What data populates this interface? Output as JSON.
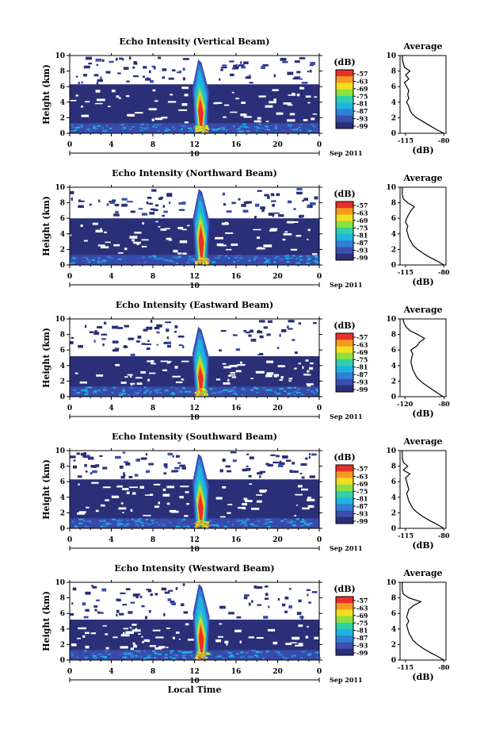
{
  "chart_data": [
    {
      "type": "heatmap",
      "title": "Echo Intensity (Vertical Beam)",
      "ylabel": "Height (km)",
      "xlabel": "",
      "x_ticks": [
        "0",
        "4",
        "8",
        "12",
        "16",
        "20",
        "0"
      ],
      "x_range": [
        0,
        24
      ],
      "y_ticks": [
        "0",
        "2",
        "4",
        "6",
        "8",
        "10"
      ],
      "y_range": [
        0,
        10
      ],
      "date_label": "10",
      "date_suffix": "Sep 2011",
      "colorbar": {
        "unit": "(dB)",
        "ticks": [
          "-57",
          "-63",
          "-69",
          "-75",
          "-81",
          "-87",
          "-93",
          "-99"
        ]
      },
      "echo": {
        "background_top_km": 6.3,
        "storm_start_h": 12.0,
        "storm_end_h": 13.2,
        "storm_top_km": 9.5,
        "strong_core_top_km": 5.0
      },
      "average_profile": {
        "title": "Average",
        "xlabel": "(dB)",
        "x_ticks": [
          "-115",
          "-80"
        ],
        "x_range": [
          -120,
          -78
        ],
        "heights": [
          0,
          0.5,
          1,
          1.5,
          2,
          2.5,
          3,
          3.5,
          4,
          4.5,
          5,
          5.5,
          6,
          6.5,
          7,
          7.5,
          8,
          8.5,
          9,
          9.5,
          10
        ],
        "values": [
          -80,
          -87,
          -93,
          -99,
          -105,
          -109,
          -111,
          -112,
          -114,
          -112,
          -113,
          -112,
          -114,
          -116,
          -112,
          -115,
          -111,
          -116,
          -117,
          -118,
          -118
        ]
      }
    },
    {
      "type": "heatmap",
      "title": "Echo Intensity (Northward Beam)",
      "ylabel": "Height (km)",
      "xlabel": "",
      "x_ticks": [
        "0",
        "4",
        "8",
        "12",
        "16",
        "20",
        "0"
      ],
      "x_range": [
        0,
        24
      ],
      "y_ticks": [
        "0",
        "2",
        "4",
        "6",
        "8",
        "10"
      ],
      "y_range": [
        0,
        10
      ],
      "date_label": "10",
      "date_suffix": "Sep 2011",
      "colorbar": {
        "unit": "(dB)",
        "ticks": [
          "-57",
          "-63",
          "-69",
          "-75",
          "-81",
          "-87",
          "-93",
          "-99"
        ]
      },
      "echo": {
        "background_top_km": 6.0,
        "storm_start_h": 12.0,
        "storm_end_h": 13.3,
        "storm_top_km": 9.8,
        "strong_core_top_km": 5.5
      },
      "average_profile": {
        "title": "Average",
        "xlabel": "(dB)",
        "x_ticks": [
          "-115",
          "-80"
        ],
        "x_range": [
          -120,
          -78
        ],
        "heights": [
          0,
          0.5,
          1,
          1.5,
          2,
          2.5,
          3,
          3.5,
          4,
          4.5,
          5,
          5.5,
          6,
          6.5,
          7,
          7.5,
          8,
          8.5,
          9,
          9.5,
          10
        ],
        "values": [
          -80,
          -86,
          -93,
          -99,
          -104,
          -108,
          -110,
          -112,
          -113,
          -114,
          -113,
          -115,
          -114,
          -112,
          -110,
          -107,
          -113,
          -117,
          -118,
          -118,
          -118
        ]
      }
    },
    {
      "type": "heatmap",
      "title": "Echo Intensity (Eastward Beam)",
      "ylabel": "Height (km)",
      "xlabel": "",
      "x_ticks": [
        "0",
        "4",
        "8",
        "12",
        "16",
        "20",
        "0"
      ],
      "x_range": [
        0,
        24
      ],
      "y_ticks": [
        "0",
        "2",
        "4",
        "6",
        "8",
        "10"
      ],
      "y_range": [
        0,
        10
      ],
      "date_label": "10",
      "date_suffix": "Sep 2011",
      "colorbar": {
        "unit": "(dB)",
        "ticks": [
          "-57",
          "-63",
          "-69",
          "-75",
          "-81",
          "-87",
          "-93",
          "-99"
        ]
      },
      "echo": {
        "background_top_km": 5.2,
        "storm_start_h": 12.0,
        "storm_end_h": 13.2,
        "storm_top_km": 9.0,
        "strong_core_top_km": 4.5
      },
      "average_profile": {
        "title": "Average",
        "xlabel": "(dB)",
        "x_ticks": [
          "-120",
          "-80"
        ],
        "x_range": [
          -125,
          -78
        ],
        "heights": [
          0,
          0.5,
          1,
          1.5,
          2,
          2.5,
          3,
          3.5,
          4,
          4.5,
          5,
          5.5,
          6,
          6.5,
          7,
          7.5,
          8,
          8.5,
          9,
          9.5,
          10
        ],
        "values": [
          -81,
          -87,
          -93,
          -99,
          -104,
          -108,
          -110,
          -112,
          -113,
          -114,
          -113,
          -112,
          -114,
          -108,
          -105,
          -100,
          -107,
          -115,
          -119,
          -121,
          -122
        ]
      }
    },
    {
      "type": "heatmap",
      "title": "Echo Intensity (Southward Beam)",
      "ylabel": "Height (km)",
      "xlabel": "",
      "x_ticks": [
        "0",
        "4",
        "8",
        "12",
        "16",
        "20",
        "0"
      ],
      "x_range": [
        0,
        24
      ],
      "y_ticks": [
        "0",
        "2",
        "4",
        "6",
        "8",
        "10"
      ],
      "y_range": [
        0,
        10
      ],
      "date_label": "10",
      "date_suffix": "Sep 2011",
      "colorbar": {
        "unit": "(dB)",
        "ticks": [
          "-57",
          "-63",
          "-69",
          "-75",
          "-81",
          "-87",
          "-93",
          "-99"
        ]
      },
      "echo": {
        "background_top_km": 6.3,
        "storm_start_h": 12.0,
        "storm_end_h": 13.2,
        "storm_top_km": 9.6,
        "strong_core_top_km": 5.0
      },
      "average_profile": {
        "title": "Average",
        "xlabel": "(dB)",
        "x_ticks": [
          "-115",
          "-80"
        ],
        "x_range": [
          -120,
          -78
        ],
        "heights": [
          0,
          0.5,
          1,
          1.5,
          2,
          2.5,
          3,
          3.5,
          4,
          4.5,
          5,
          5.5,
          6,
          6.5,
          7,
          7.5,
          8,
          8.5,
          9,
          9.5,
          10
        ],
        "values": [
          -80,
          -86,
          -93,
          -99,
          -104,
          -108,
          -110,
          -112,
          -113,
          -114,
          -112,
          -113,
          -114,
          -115,
          -111,
          -117,
          -113,
          -117,
          -118,
          -118,
          -118
        ]
      }
    },
    {
      "type": "heatmap",
      "title": "Echo Intensity (Westward Beam)",
      "ylabel": "Height (km)",
      "xlabel": "Local Time",
      "x_ticks": [
        "0",
        "4",
        "8",
        "12",
        "16",
        "20",
        "0"
      ],
      "x_range": [
        0,
        24
      ],
      "y_ticks": [
        "0",
        "2",
        "4",
        "6",
        "8",
        "10"
      ],
      "y_range": [
        0,
        10
      ],
      "date_label": "10",
      "date_suffix": "Sep 2011",
      "colorbar": {
        "unit": "(dB)",
        "ticks": [
          "-57",
          "-63",
          "-69",
          "-75",
          "-81",
          "-87",
          "-93",
          "-99"
        ]
      },
      "echo": {
        "background_top_km": 5.2,
        "storm_start_h": 12.0,
        "storm_end_h": 13.3,
        "storm_top_km": 9.8,
        "strong_core_top_km": 5.0
      },
      "average_profile": {
        "title": "Average",
        "xlabel": "(dB)",
        "x_ticks": [
          "-115",
          "-80"
        ],
        "x_range": [
          -120,
          -78
        ],
        "heights": [
          0,
          0.5,
          1,
          1.5,
          2,
          2.5,
          3,
          3.5,
          4,
          4.5,
          5,
          5.5,
          6,
          6.5,
          7,
          7.5,
          8,
          8.5,
          9,
          9.5,
          10
        ],
        "values": [
          -80,
          -86,
          -93,
          -99,
          -104,
          -108,
          -110,
          -112,
          -113,
          -114,
          -112,
          -114,
          -113,
          -112,
          -108,
          -101,
          -112,
          -117,
          -118,
          -118,
          -118
        ]
      }
    }
  ],
  "colors": {
    "background_echo": "#2b2f78",
    "scale": [
      "#2b2f78",
      "#3b4fb0",
      "#2f80d6",
      "#1fb3e0",
      "#30d0a8",
      "#8ee040",
      "#f0e020",
      "#f59a20",
      "#e8302a"
    ]
  }
}
